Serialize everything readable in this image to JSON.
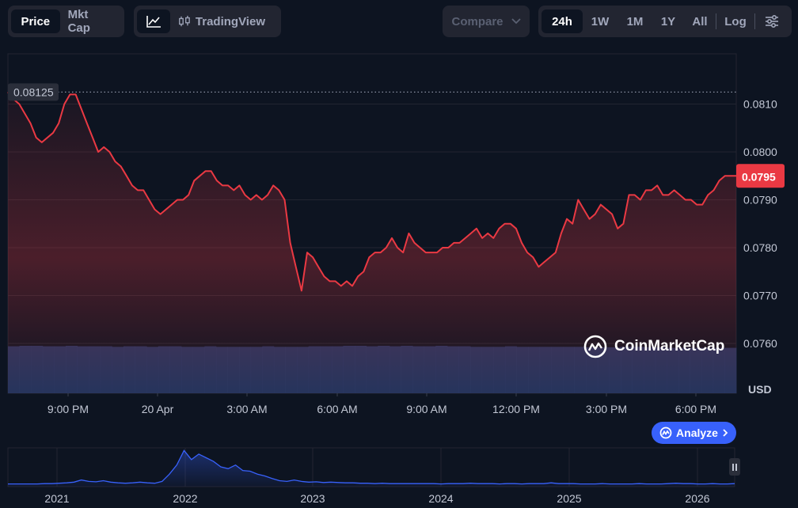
{
  "toolbar": {
    "view_tabs": [
      "Price",
      "Mkt Cap"
    ],
    "tradingview_label": "TradingView",
    "compare_label": "Compare",
    "range_tabs": [
      "24h",
      "1W",
      "1M",
      "1Y",
      "All"
    ],
    "log_label": "Log"
  },
  "watermark": "CoinMarketCap",
  "analyze_label": "Analyze",
  "currency_label": "USD",
  "colors": {
    "line": "#ea3943",
    "price_tag": "#ea3943",
    "analyze": "#3861fb",
    "navigator": "#3861fb"
  },
  "chart_data": {
    "type": "line",
    "yticks": [
      "0.0810",
      "0.0800",
      "0.0790",
      "0.0780",
      "0.0770",
      "0.0760"
    ],
    "ylim": [
      0.0755,
      0.0818
    ],
    "xticks": [
      "9:00 PM",
      "20 Apr",
      "3:00 AM",
      "6:00 AM",
      "9:00 AM",
      "12:00 PM",
      "3:00 PM",
      "6:00 PM"
    ],
    "start_price_label": "0.08125",
    "start_price": 0.08125,
    "current_price_label": "0.0795",
    "current_price": 0.0795,
    "series": [
      {
        "values": [
          0.08125,
          0.0811,
          0.081,
          0.0808,
          0.0806,
          0.0803,
          0.0802,
          0.0803,
          0.0804,
          0.0806,
          0.081,
          0.0812,
          0.0812,
          0.0809,
          0.0806,
          0.0803,
          0.08,
          0.0801,
          0.08,
          0.0798,
          0.0797,
          0.0795,
          0.0793,
          0.0792,
          0.0792,
          0.079,
          0.0788,
          0.0787,
          0.0788,
          0.0789,
          0.079,
          0.079,
          0.0791,
          0.0794,
          0.0795,
          0.0796,
          0.0796,
          0.0794,
          0.0793,
          0.0793,
          0.0792,
          0.0793,
          0.0791,
          0.079,
          0.0791,
          0.079,
          0.0791,
          0.0793,
          0.0792,
          0.079,
          0.0781,
          0.0776,
          0.0771,
          0.0779,
          0.0778,
          0.0776,
          0.0774,
          0.0773,
          0.0773,
          0.0772,
          0.0773,
          0.0772,
          0.0774,
          0.0775,
          0.0778,
          0.0779,
          0.0779,
          0.078,
          0.0782,
          0.078,
          0.0779,
          0.0783,
          0.0781,
          0.078,
          0.0779,
          0.0779,
          0.0779,
          0.078,
          0.078,
          0.0781,
          0.0781,
          0.0782,
          0.0783,
          0.0784,
          0.0782,
          0.0783,
          0.0782,
          0.0784,
          0.0785,
          0.0785,
          0.0784,
          0.0781,
          0.0779,
          0.0778,
          0.0776,
          0.0777,
          0.0778,
          0.0779,
          0.0783,
          0.0786,
          0.0785,
          0.079,
          0.0788,
          0.0786,
          0.0787,
          0.0789,
          0.0788,
          0.0787,
          0.0784,
          0.0785,
          0.0791,
          0.0791,
          0.079,
          0.0792,
          0.0792,
          0.0793,
          0.0791,
          0.0791,
          0.0792,
          0.0791,
          0.079,
          0.079,
          0.0789,
          0.0789,
          0.0791,
          0.0792,
          0.0794,
          0.0795,
          0.0795,
          0.0795
        ]
      }
    ],
    "volume": {
      "levels": [
        0.92,
        0.93,
        0.93,
        0.92,
        0.92,
        0.93,
        0.92,
        0.92,
        0.92,
        0.91,
        0.92,
        0.92,
        0.91,
        0.92,
        0.92,
        0.91,
        0.91,
        0.92,
        0.91,
        0.91,
        0.91,
        0.91,
        0.92,
        0.91,
        0.91,
        0.91,
        0.92,
        0.92,
        0.92,
        0.93,
        0.93,
        0.92,
        0.93,
        0.92,
        0.93,
        0.92,
        0.92,
        0.93,
        0.92,
        0.92,
        0.91,
        0.91,
        0.91,
        0.92,
        0.91,
        0.91,
        0.91,
        0.91,
        0.91,
        0.91,
        0.9,
        0.9,
        0.9,
        0.91,
        0.91,
        0.9,
        0.9,
        0.89,
        0.89,
        0.89,
        0.89,
        0.89,
        0.89
      ]
    },
    "navigator": {
      "years": [
        "2021",
        "2022",
        "2023",
        "2024",
        "2025",
        "2026"
      ],
      "values": [
        0.03,
        0.03,
        0.03,
        0.03,
        0.03,
        0.04,
        0.04,
        0.05,
        0.06,
        0.08,
        0.14,
        0.1,
        0.09,
        0.12,
        0.08,
        0.06,
        0.05,
        0.06,
        0.08,
        0.06,
        0.05,
        0.1,
        0.3,
        0.55,
        0.95,
        0.7,
        0.85,
        0.75,
        0.65,
        0.5,
        0.45,
        0.55,
        0.4,
        0.38,
        0.3,
        0.25,
        0.18,
        0.12,
        0.1,
        0.14,
        0.1,
        0.08,
        0.09,
        0.07,
        0.08,
        0.07,
        0.06,
        0.06,
        0.05,
        0.05,
        0.04,
        0.05,
        0.04,
        0.04,
        0.04,
        0.04,
        0.04,
        0.04,
        0.04,
        0.03,
        0.04,
        0.04,
        0.04,
        0.05,
        0.04,
        0.04,
        0.04,
        0.03,
        0.04,
        0.04,
        0.03,
        0.04,
        0.04,
        0.04,
        0.06,
        0.04,
        0.04,
        0.04,
        0.03,
        0.03,
        0.03,
        0.04,
        0.03,
        0.03,
        0.03,
        0.03,
        0.04,
        0.03,
        0.03,
        0.03,
        0.04,
        0.05,
        0.04,
        0.04,
        0.03,
        0.03,
        0.04,
        0.03,
        0.03,
        0.04
      ]
    }
  }
}
